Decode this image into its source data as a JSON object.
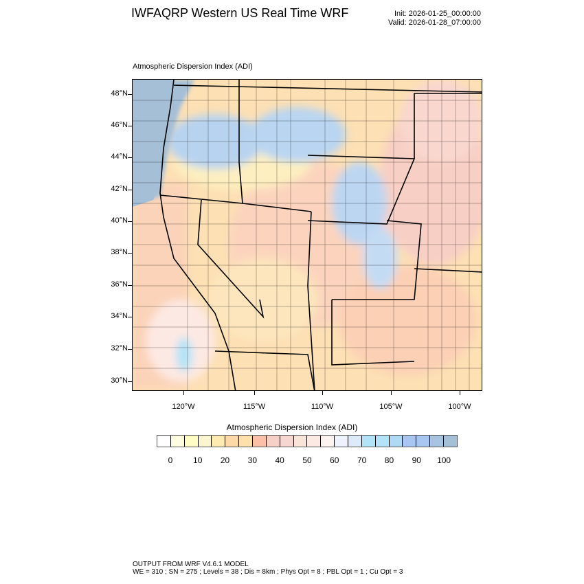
{
  "header": {
    "title": "IWFAQRP Western US Real Time WRF",
    "init": "Init: 2026-01-25_00:00:00",
    "valid": "Valid: 2026-01-28_07:00:00"
  },
  "map": {
    "subtitle": "Atmospheric Dispersion Index   (ADI)",
    "lat_labels": [
      "48°N",
      "46°N",
      "44°N",
      "42°N",
      "40°N",
      "38°N",
      "36°N",
      "34°N",
      "32°N",
      "30°N"
    ],
    "lon_labels": [
      "120°W",
      "115°W",
      "110°W",
      "105°W",
      "100°W"
    ],
    "ocean_color": "#a5bfd6",
    "land_base_color": "#fde0b4"
  },
  "colorbar": {
    "title": "Atmospheric Dispersion Index  (ADI)",
    "labels": [
      "0",
      "10",
      "20",
      "30",
      "40",
      "50",
      "60",
      "70",
      "80",
      "90",
      "100"
    ],
    "colors": [
      "#ffffff",
      "#fffde0",
      "#fffcc4",
      "#fbf6cf",
      "#fdebb0",
      "#fdd9a8",
      "#fde0aa",
      "#fcc0a8",
      "#f6d0c6",
      "#f5d6d0",
      "#f8e4d8",
      "#fce9e4",
      "#fdf4f2",
      "#eef2fc",
      "#dceafa",
      "#b3e3f7",
      "#b3e3f7",
      "#aedaf5",
      "#a9c6f3",
      "#a9c6f3",
      "#a9c4e0",
      "#a5bfd6"
    ]
  },
  "footer": {
    "line1": "OUTPUT FROM WRF V4.6.1 MODEL",
    "line2": "WE = 310 ; SN = 275 ; Levels = 38 ; Dis = 8km ; Phys Opt = 8 ; PBL Opt = 1 ; Cu Opt = 3"
  }
}
